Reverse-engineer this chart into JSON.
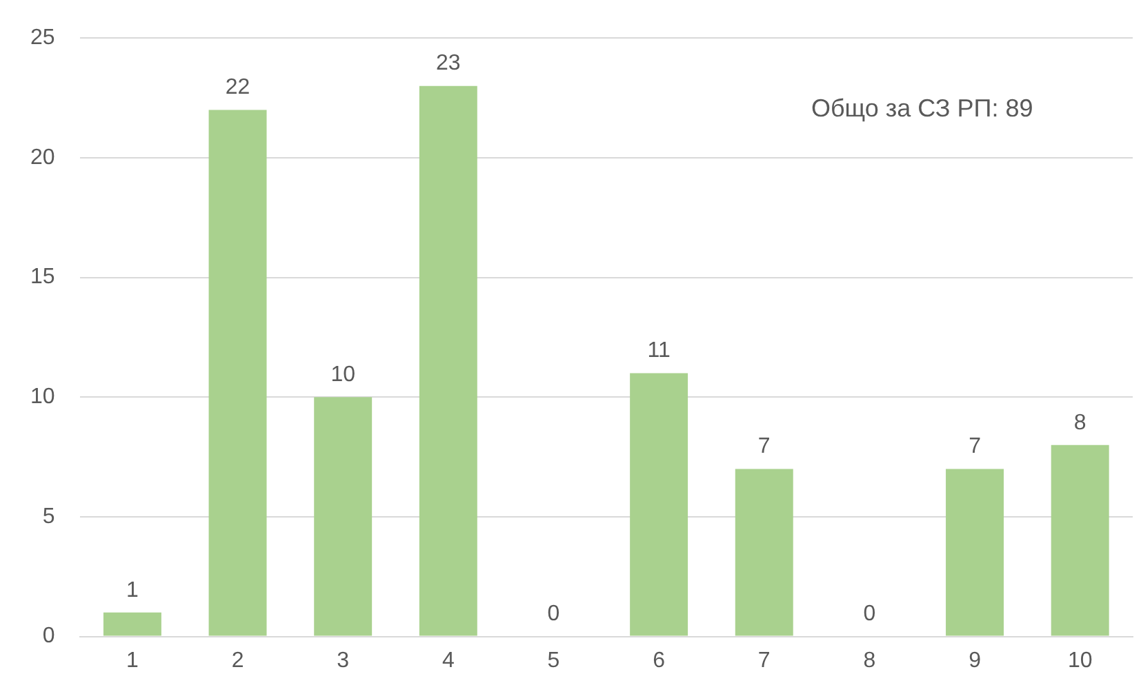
{
  "chart_data": {
    "type": "bar",
    "categories": [
      "1",
      "2",
      "3",
      "4",
      "5",
      "6",
      "7",
      "8",
      "9",
      "10"
    ],
    "values": [
      1,
      22,
      10,
      23,
      0,
      11,
      7,
      0,
      7,
      8
    ],
    "color": "#a9d18e",
    "ylim": [
      0,
      25
    ],
    "yticks": [
      0,
      5,
      10,
      15,
      20,
      25
    ],
    "grid": "y",
    "data_labels": true,
    "legend": false,
    "annotations": [
      "Общо за СЗ РП: 89"
    ]
  }
}
